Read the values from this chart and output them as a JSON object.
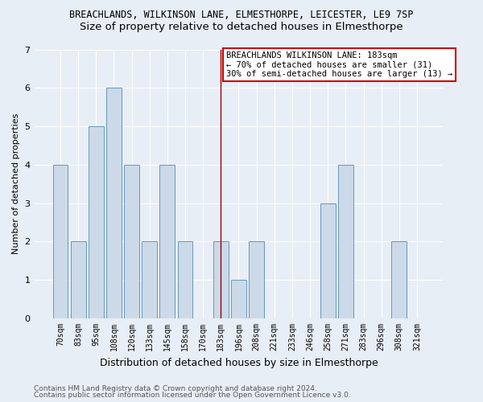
{
  "title1": "BREACHLANDS, WILKINSON LANE, ELMESTHORPE, LEICESTER, LE9 7SP",
  "title2": "Size of property relative to detached houses in Elmesthorpe",
  "xlabel": "Distribution of detached houses by size in Elmesthorpe",
  "ylabel": "Number of detached properties",
  "categories": [
    "70sqm",
    "83sqm",
    "95sqm",
    "108sqm",
    "120sqm",
    "133sqm",
    "145sqm",
    "158sqm",
    "170sqm",
    "183sqm",
    "196sqm",
    "208sqm",
    "221sqm",
    "233sqm",
    "246sqm",
    "258sqm",
    "271sqm",
    "283sqm",
    "296sqm",
    "308sqm",
    "321sqm"
  ],
  "values": [
    4,
    2,
    5,
    6,
    4,
    2,
    4,
    2,
    0,
    2,
    1,
    2,
    0,
    0,
    0,
    3,
    4,
    0,
    0,
    2,
    0
  ],
  "bar_color": "#ccd9e8",
  "bar_edge_color": "#6699bb",
  "highlight_index": 9,
  "highlight_line_color": "#990000",
  "annotation_text": "BREACHLANDS WILKINSON LANE: 183sqm\n← 70% of detached houses are smaller (31)\n30% of semi-detached houses are larger (13) →",
  "annotation_box_color": "#ffffff",
  "annotation_box_edge_color": "#cc0000",
  "ylim": [
    0,
    7
  ],
  "yticks": [
    0,
    1,
    2,
    3,
    4,
    5,
    6,
    7
  ],
  "background_color": "#e8eef5",
  "footer1": "Contains HM Land Registry data © Crown copyright and database right 2024.",
  "footer2": "Contains public sector information licensed under the Open Government Licence v3.0.",
  "title1_fontsize": 8.5,
  "title2_fontsize": 9.5,
  "xlabel_fontsize": 9,
  "ylabel_fontsize": 8,
  "tick_fontsize": 7,
  "annotation_fontsize": 7.5,
  "footer_fontsize": 6.5
}
